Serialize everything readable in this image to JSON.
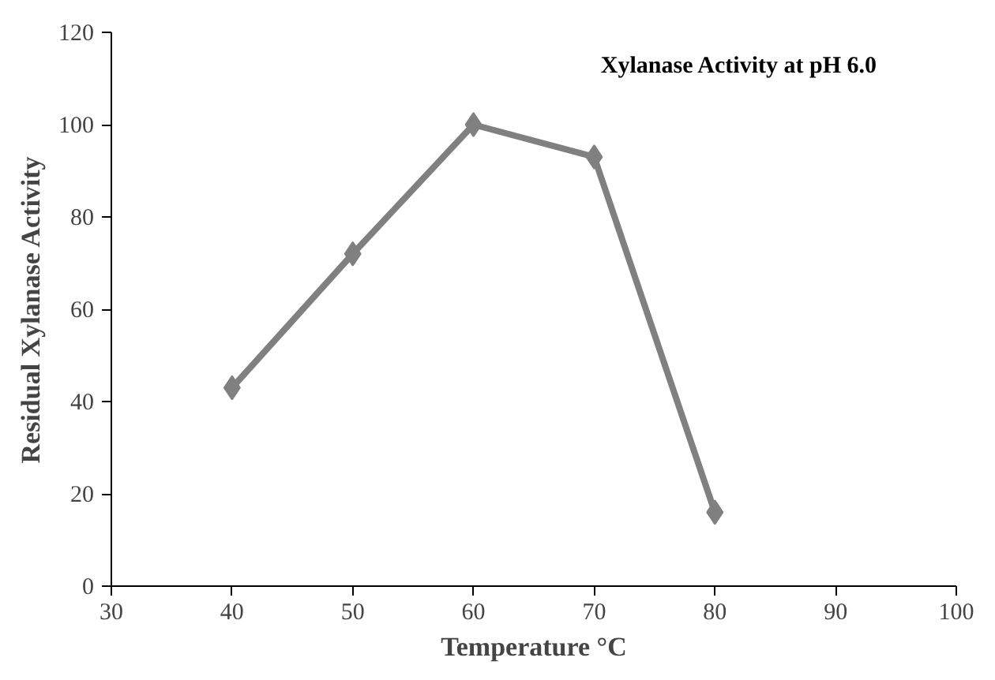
{
  "chart_data": {
    "type": "line",
    "title": "Xylanase Activity at pH 6.0",
    "xlabel": "Temperature °C",
    "ylabel": "Residual Xylanase Activity",
    "x": [
      40,
      50,
      60,
      70,
      80
    ],
    "series": [
      {
        "color": "#808080",
        "values": [
          43,
          72,
          100,
          93,
          16
        ]
      }
    ],
    "xlim": [
      30,
      100
    ],
    "xticks": [
      30,
      40,
      50,
      60,
      70,
      80,
      90,
      100
    ],
    "ylim": [
      0,
      120
    ],
    "yticks": [
      0,
      20,
      40,
      60,
      80,
      100,
      120
    ],
    "grid": false,
    "marker": "diamond",
    "line_style": "solid"
  }
}
